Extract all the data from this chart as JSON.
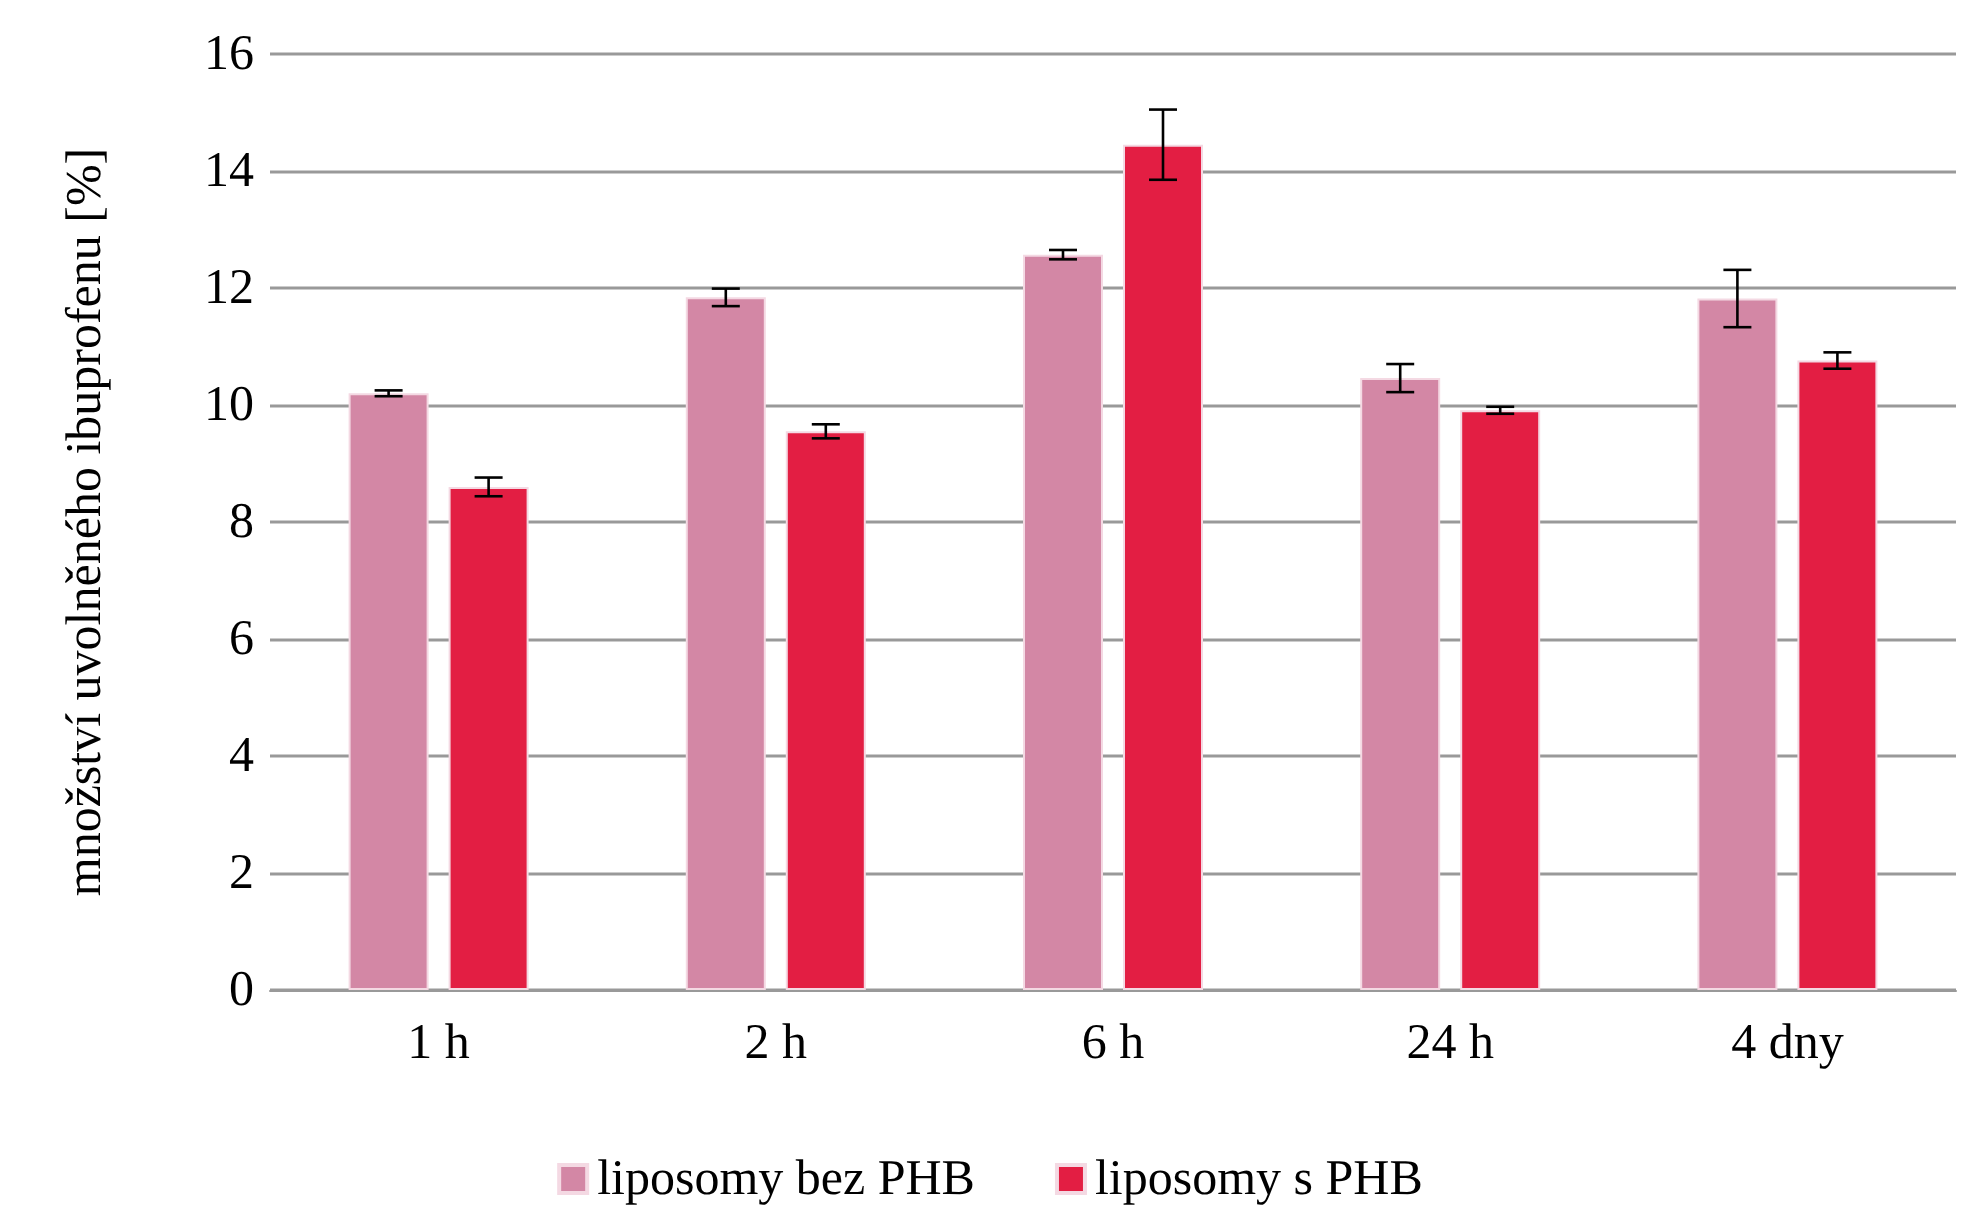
{
  "chart_data": {
    "type": "bar",
    "ylabel": "množství uvolněného ibuprofenu [%]",
    "categories": [
      "1 h",
      "2 h",
      "6 h",
      "24 h",
      "4 dny"
    ],
    "series": [
      {
        "name": "liposomy bez PHB",
        "color": "#d387a5",
        "values": [
          10.2,
          11.84,
          12.57,
          10.46,
          11.82
        ],
        "errors": [
          0.05,
          0.15,
          0.08,
          0.24,
          0.49
        ]
      },
      {
        "name": "liposomy s PHB",
        "color": "#e31e43",
        "values": [
          8.6,
          9.55,
          14.45,
          9.91,
          10.76
        ],
        "errors": [
          0.16,
          0.12,
          0.6,
          0.06,
          0.14
        ]
      }
    ],
    "ylim": [
      0,
      16
    ],
    "yticks": [
      0,
      2,
      4,
      6,
      8,
      10,
      12,
      14,
      16
    ],
    "grid": "y",
    "legend": "bottom"
  }
}
